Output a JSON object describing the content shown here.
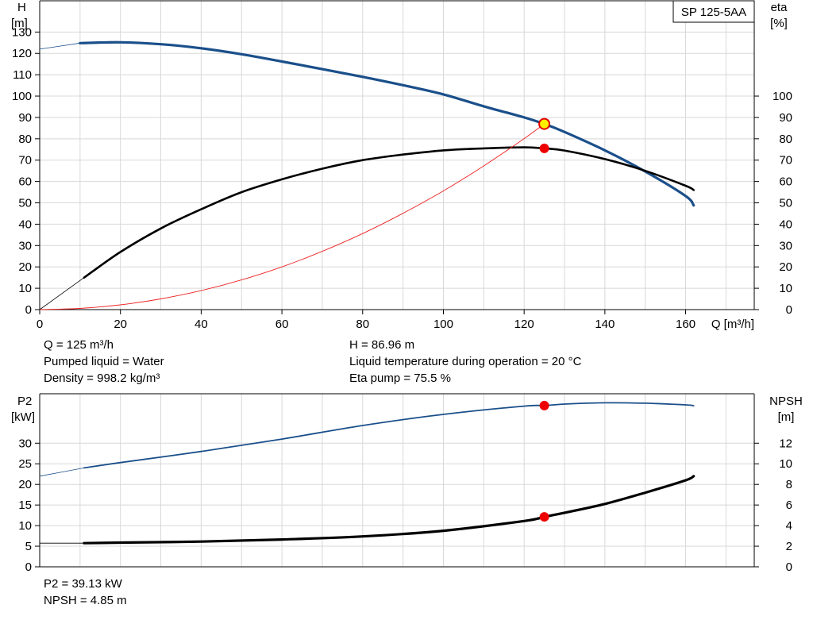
{
  "chart_data": [
    {
      "type": "line",
      "name": "pump-curve-chart",
      "title": "",
      "legend": "SP 125-5AA",
      "xlabel": "Q [m³/h]",
      "x_ticks": [
        0,
        20,
        40,
        60,
        80,
        100,
        120,
        140,
        160
      ],
      "xlim": [
        0,
        177
      ],
      "y_left": {
        "label_line1": "H",
        "label_line2": "[m]",
        "ticks": [
          0,
          10,
          20,
          30,
          40,
          50,
          60,
          70,
          80,
          90,
          100,
          110,
          120,
          130
        ],
        "lim": [
          0,
          145
        ]
      },
      "y_right": {
        "label_line1": "eta",
        "label_line2": "[%]",
        "ticks": [
          0,
          10,
          20,
          30,
          40,
          50,
          60,
          70,
          80,
          90,
          100
        ],
        "lim": [
          0,
          145
        ]
      },
      "grid": true,
      "series": [
        {
          "name": "H",
          "axis": "left",
          "color": "#1a4f8a",
          "x": [
            0,
            10,
            20,
            30,
            40,
            50,
            60,
            70,
            80,
            90,
            100,
            110,
            120,
            125,
            130,
            140,
            150,
            160,
            162
          ],
          "y": [
            122,
            124.8,
            125.2,
            124.3,
            122.4,
            119.6,
            116.2,
            112.6,
            109,
            105.1,
            100.8,
            95.2,
            90,
            86.96,
            83.2,
            74.6,
            64.7,
            53.2,
            48.8
          ]
        },
        {
          "name": "eta",
          "axis": "right",
          "color": "#000000",
          "x": [
            0,
            11,
            20,
            30,
            40,
            50,
            60,
            70,
            80,
            90,
            100,
            110,
            120,
            125,
            130,
            140,
            150,
            160,
            162
          ],
          "y": [
            0,
            15,
            27,
            38,
            47,
            55,
            61,
            66,
            70,
            72.6,
            74.6,
            75.5,
            76,
            75.5,
            74.5,
            70.5,
            65,
            58,
            56
          ]
        },
        {
          "name": "system curve",
          "axis": "left",
          "color": "#ee2222",
          "x": [
            0,
            10,
            20,
            30,
            40,
            50,
            60,
            70,
            80,
            90,
            100,
            110,
            120,
            125
          ],
          "y": [
            0,
            0.56,
            2.23,
            5.01,
            8.9,
            13.9,
            20,
            27.3,
            35.6,
            45.1,
            55.6,
            67.3,
            80.1,
            86.96
          ]
        }
      ],
      "operating_points": [
        {
          "name": "duty-point-h",
          "x": 125,
          "y": 86.96,
          "axis": "left",
          "fill": "#ffee00",
          "stroke": "#e00000"
        },
        {
          "name": "duty-point-eta",
          "x": 125,
          "y": 75.5,
          "axis": "right",
          "fill": "#ee0000",
          "stroke": "#ee0000"
        }
      ]
    },
    {
      "type": "line",
      "name": "power-npsh-chart",
      "title": "",
      "xlim": [
        0,
        177
      ],
      "y_left": {
        "label_line1": "P2",
        "label_line2": "[kW]",
        "ticks": [
          0,
          5,
          10,
          15,
          20,
          25,
          30
        ],
        "lim": [
          0,
          42
        ]
      },
      "y_right": {
        "label_line1": "NPSH",
        "label_line2": "[m]",
        "ticks": [
          0,
          2,
          4,
          6,
          8,
          10,
          12
        ],
        "lim": [
          0,
          16.8
        ]
      },
      "grid": true,
      "series": [
        {
          "name": "P2",
          "axis": "left",
          "color": "#1a4f8a",
          "x": [
            0,
            11,
            20,
            40,
            60,
            80,
            100,
            120,
            125,
            130,
            140,
            150,
            160,
            162
          ],
          "y": [
            22,
            24,
            25.3,
            28,
            31,
            34.3,
            37,
            39,
            39.13,
            39.5,
            39.8,
            39.7,
            39.3,
            39.1
          ]
        },
        {
          "name": "NPSH",
          "axis": "right",
          "color": "#000000",
          "x": [
            0,
            11,
            20,
            40,
            60,
            80,
            100,
            120,
            125,
            130,
            140,
            150,
            160,
            162
          ],
          "y": [
            2.3,
            2.3,
            2.35,
            2.45,
            2.65,
            2.95,
            3.5,
            4.45,
            4.85,
            5.25,
            6.1,
            7.2,
            8.4,
            8.8
          ]
        }
      ],
      "operating_points": [
        {
          "name": "duty-point-p2",
          "x": 125,
          "y": 39.13,
          "axis": "left",
          "fill": "#ee0000",
          "stroke": "#ee0000"
        },
        {
          "name": "duty-point-npsh",
          "x": 125,
          "y": 4.85,
          "axis": "right",
          "fill": "#ee0000",
          "stroke": "#ee0000"
        }
      ]
    }
  ],
  "info_top": {
    "q": "Q = 125 m³/h",
    "liquid": "Pumped liquid = Water",
    "density": "Density = 998.2 kg/m³",
    "h": "H = 86.96 m",
    "temperature": "Liquid temperature during operation = 20 °C",
    "eta": "Eta pump = 75.5 %"
  },
  "info_bottom": {
    "p2": "P2 = 39.13 kW",
    "npsh": "NPSH = 4.85 m"
  }
}
